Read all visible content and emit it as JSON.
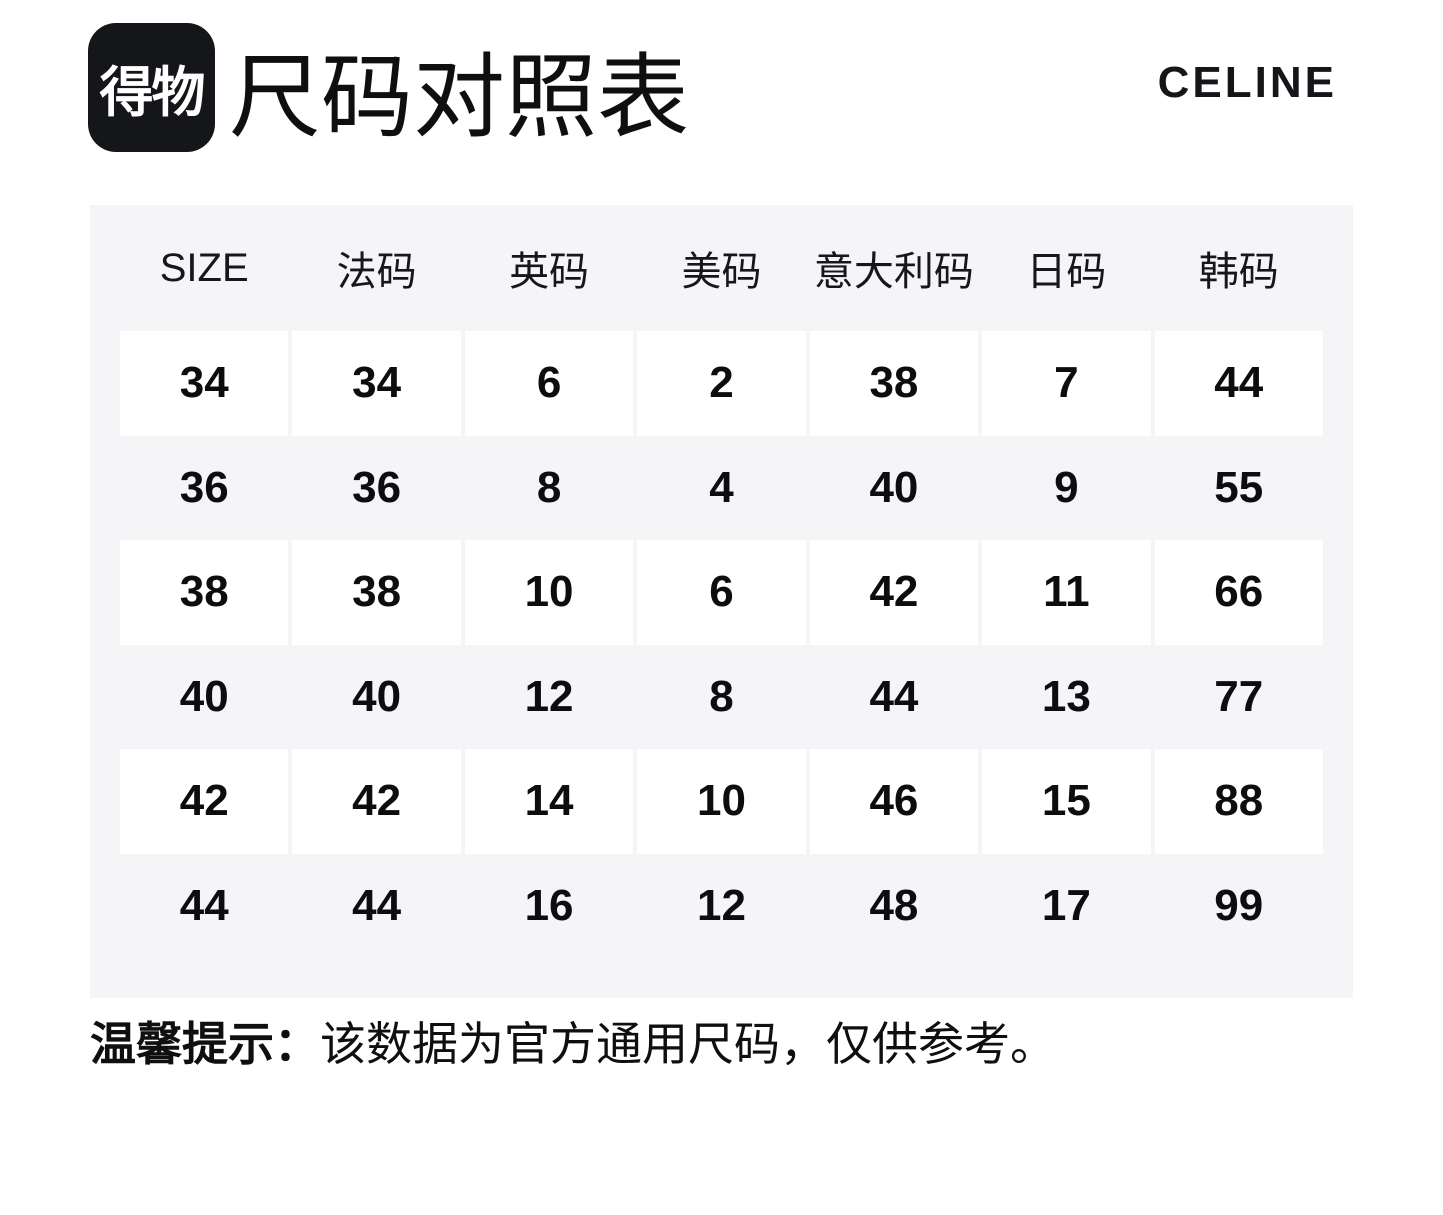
{
  "page": {
    "logo_text": "得物",
    "title": "尺码对照表",
    "brand": "CELINE"
  },
  "size_chart": {
    "columns": [
      "SIZE",
      "法码",
      "英码",
      "美码",
      "意大利码",
      "日码",
      "韩码"
    ],
    "rows": [
      [
        "34",
        "34",
        "6",
        "2",
        "38",
        "7",
        "44"
      ],
      [
        "36",
        "36",
        "8",
        "4",
        "40",
        "9",
        "55"
      ],
      [
        "38",
        "38",
        "10",
        "6",
        "42",
        "11",
        "66"
      ],
      [
        "40",
        "40",
        "12",
        "8",
        "44",
        "13",
        "77"
      ],
      [
        "42",
        "42",
        "14",
        "10",
        "46",
        "15",
        "88"
      ],
      [
        "44",
        "44",
        "16",
        "12",
        "48",
        "17",
        "99"
      ]
    ]
  },
  "note": {
    "label": "温馨提示：",
    "text": "该数据为官方通用尺码，仅供参考。"
  },
  "colors": {
    "table_bg": "#f5f5f7",
    "cell_bg": "#ffffff",
    "text": "#111113",
    "logo_bg": "#15161a"
  }
}
